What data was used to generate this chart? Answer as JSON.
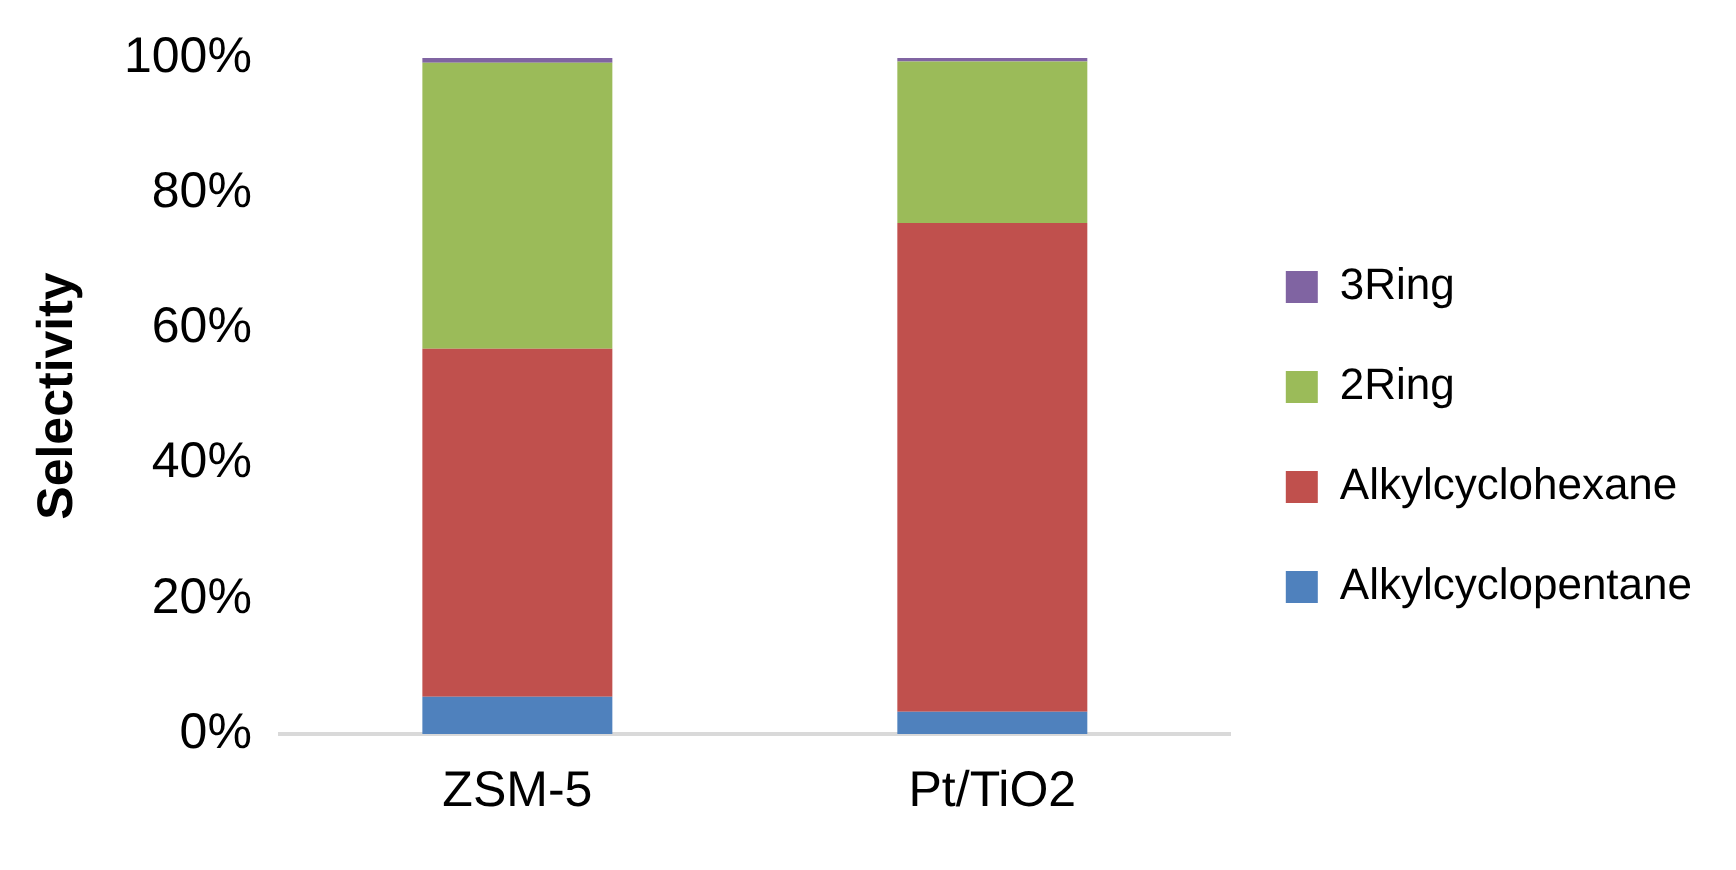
{
  "chart_data": {
    "type": "bar",
    "stacked": true,
    "ylabel": "Selectivity",
    "categories": [
      "ZSM-5",
      "Pt/TiO2"
    ],
    "series": [
      {
        "name": "Alkylcyclopentane",
        "color": "#4f81bd",
        "values": [
          5.5,
          3.3
        ]
      },
      {
        "name": "Alkylcyclohexane",
        "color": "#c0504d",
        "values": [
          51.5,
          72.3
        ]
      },
      {
        "name": "2Ring",
        "color": "#9bbb59",
        "values": [
          42.3,
          23.9
        ]
      },
      {
        "name": "3Ring",
        "color": "#8064a2",
        "values": [
          0.7,
          0.5
        ]
      }
    ],
    "ylim": [
      0,
      100
    ],
    "yticks": [
      {
        "value": 0,
        "label": "0%"
      },
      {
        "value": 20,
        "label": "20%"
      },
      {
        "value": 40,
        "label": "40%"
      },
      {
        "value": 60,
        "label": "60%"
      },
      {
        "value": 80,
        "label": "80%"
      },
      {
        "value": 100,
        "label": "100%"
      }
    ],
    "grid": false,
    "legend": "right"
  }
}
